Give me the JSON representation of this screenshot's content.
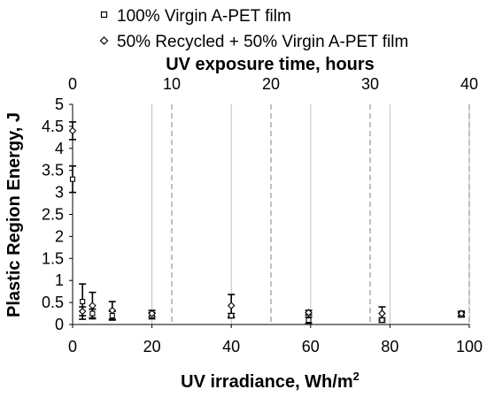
{
  "chart_data": {
    "type": "scatter",
    "title": "",
    "xlabel_base": "UV irradiance, Wh/m",
    "xlabel_sup": "2",
    "ylabel": "Plastic Region Energy, J",
    "x2label": "UV exposure time, hours",
    "xlim": [
      0,
      100
    ],
    "ylim": [
      0,
      5
    ],
    "x2lim": [
      0,
      40
    ],
    "x_ticks": [
      "0",
      "20",
      "40",
      "60",
      "80",
      "100"
    ],
    "y_ticks": [
      "0",
      "0.5",
      "1",
      "1.5",
      "2",
      "2.5",
      "3",
      "3.5",
      "4",
      "4.5",
      "5"
    ],
    "x2_ticks": [
      "0",
      "10",
      "20",
      "30",
      "40"
    ],
    "x2_gridlines_dashed": [
      10,
      20,
      30,
      40
    ],
    "x_gridlines_solid": [
      20,
      40,
      60,
      80,
      100
    ],
    "legend_position": "top",
    "series": [
      {
        "name": "100% Virgin A-PET film",
        "marker": "square",
        "points": [
          {
            "x": 0,
            "y": 3.3,
            "err": 0.3
          },
          {
            "x": 2.5,
            "y": 0.52,
            "err": 0.4
          },
          {
            "x": 5,
            "y": 0.25,
            "err": 0.1
          },
          {
            "x": 10,
            "y": 0.2,
            "err": 0.1
          },
          {
            "x": 20,
            "y": 0.2,
            "err": 0.07
          },
          {
            "x": 40,
            "y": 0.2,
            "err": 0.05
          },
          {
            "x": 59.5,
            "y": 0.1,
            "err": 0.07
          },
          {
            "x": 78,
            "y": 0.1,
            "err": 0.05
          },
          {
            "x": 98,
            "y": 0.22,
            "err": 0.05
          }
        ]
      },
      {
        "name": "50% Recycled + 50% Virgin A-PET film",
        "marker": "diamond",
        "points": [
          {
            "x": 0,
            "y": 4.4,
            "err": 0.2
          },
          {
            "x": 2.5,
            "y": 0.3,
            "err": 0.1
          },
          {
            "x": 5,
            "y": 0.43,
            "err": 0.3
          },
          {
            "x": 10,
            "y": 0.32,
            "err": 0.2
          },
          {
            "x": 20,
            "y": 0.25,
            "err": 0.07
          },
          {
            "x": 40,
            "y": 0.43,
            "err": 0.25
          },
          {
            "x": 59.5,
            "y": 0.27,
            "err": 0.05
          },
          {
            "x": 78,
            "y": 0.25,
            "err": 0.15
          },
          {
            "x": 98,
            "y": 0.25,
            "err": 0.05
          }
        ]
      }
    ]
  }
}
